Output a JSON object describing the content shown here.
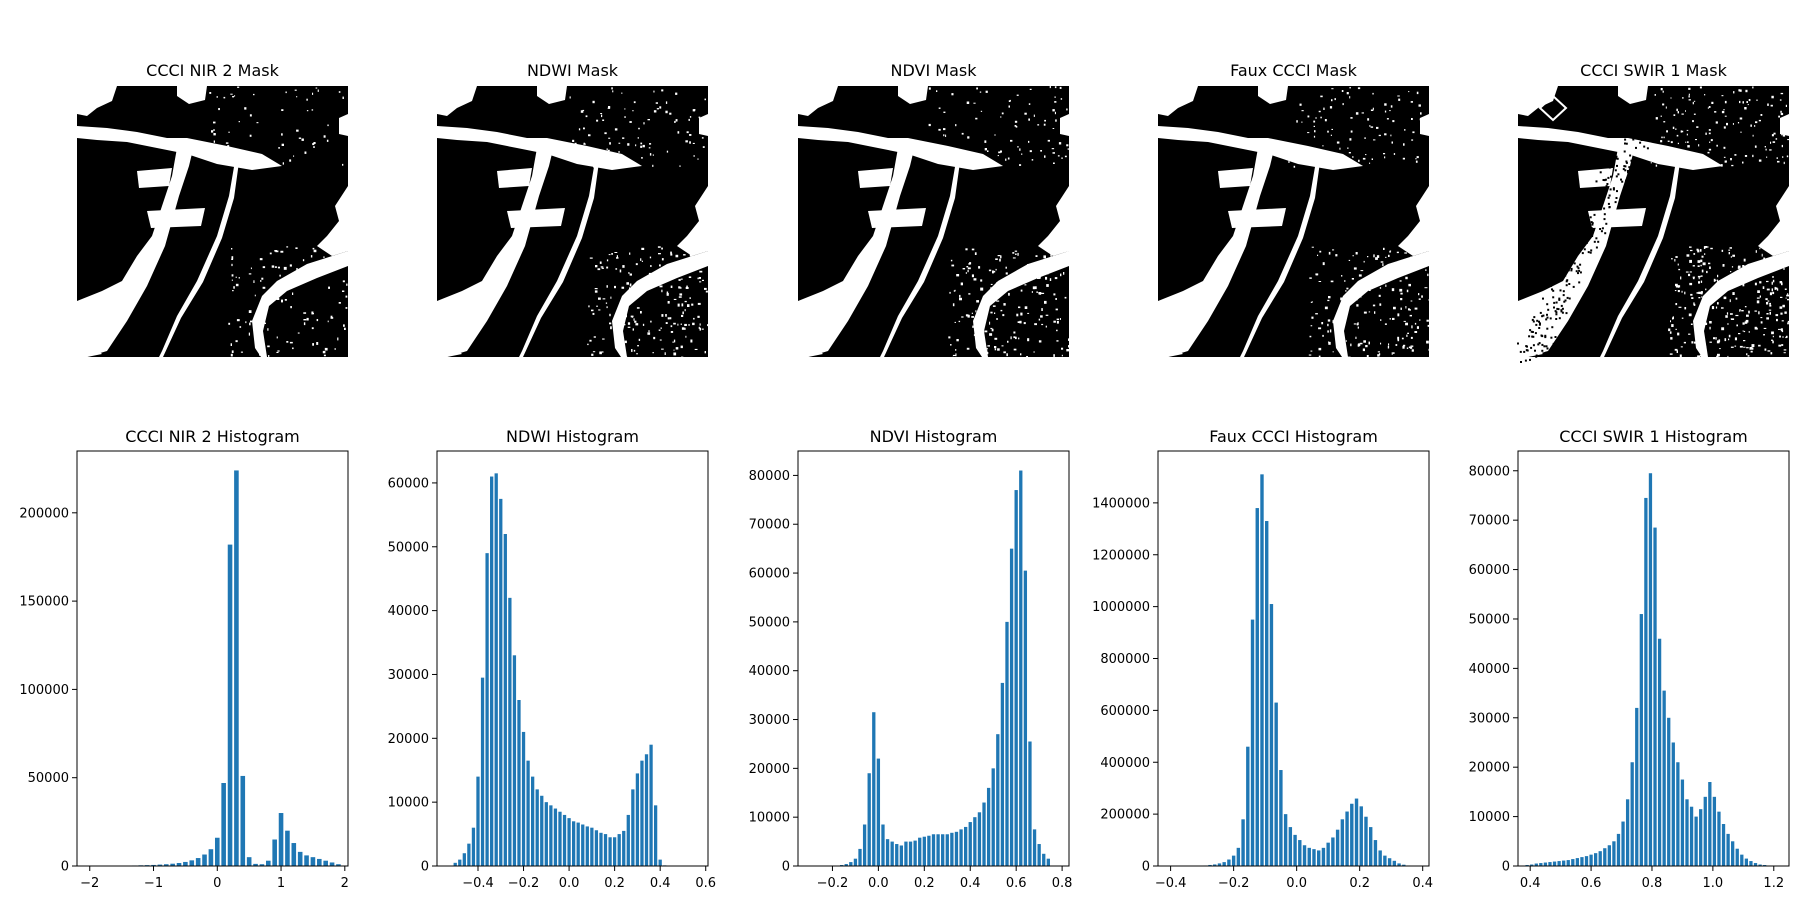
{
  "colors": {
    "bar": "#1f77b4",
    "mask_bg": "#000000",
    "mask_fg": "#ffffff"
  },
  "masks": [
    {
      "title": "CCCI NIR 2 Mask"
    },
    {
      "title": "NDWI Mask"
    },
    {
      "title": "NDVI Mask"
    },
    {
      "title": "Faux CCCI Mask"
    },
    {
      "title": "CCCI SWIR 1 Mask"
    }
  ],
  "chart_data": [
    {
      "type": "bar",
      "title": "CCCI NIR 2 Histogram",
      "xlim": [
        -2.2,
        2.05
      ],
      "ylim": [
        0,
        235000
      ],
      "xticks": [
        -2,
        -1,
        0,
        1,
        2
      ],
      "yticks": [
        0,
        50000,
        100000,
        150000,
        200000
      ],
      "bin_width": 0.1,
      "x": [
        -1.4,
        -1.3,
        -1.2,
        -1.1,
        -1.0,
        -0.9,
        -0.8,
        -0.7,
        -0.6,
        -0.5,
        -0.4,
        -0.3,
        -0.2,
        -0.1,
        0.0,
        0.1,
        0.2,
        0.3,
        0.4,
        0.5,
        0.6,
        0.7,
        0.8,
        0.9,
        1.0,
        1.1,
        1.2,
        1.3,
        1.4,
        1.5,
        1.6,
        1.7,
        1.8,
        1.9
      ],
      "values": [
        200,
        300,
        400,
        500,
        600,
        800,
        1000,
        1300,
        1700,
        2300,
        3200,
        4500,
        6500,
        9500,
        16000,
        47000,
        182000,
        224000,
        51000,
        5000,
        1200,
        1000,
        3000,
        15000,
        30000,
        20000,
        13000,
        8000,
        6000,
        5000,
        4000,
        3000,
        2000,
        1000
      ]
    },
    {
      "type": "bar",
      "title": "NDWI Histogram",
      "xlim": [
        -0.58,
        0.61
      ],
      "ylim": [
        0,
        65000
      ],
      "xticks": [
        -0.4,
        -0.2,
        0.0,
        0.2,
        0.4,
        0.6
      ],
      "yticks": [
        0,
        10000,
        20000,
        30000,
        40000,
        50000,
        60000
      ],
      "bin_width": 0.02,
      "x": [
        -0.5,
        -0.48,
        -0.46,
        -0.44,
        -0.42,
        -0.4,
        -0.38,
        -0.36,
        -0.34,
        -0.32,
        -0.3,
        -0.28,
        -0.26,
        -0.24,
        -0.22,
        -0.2,
        -0.18,
        -0.16,
        -0.14,
        -0.12,
        -0.1,
        -0.08,
        -0.06,
        -0.04,
        -0.02,
        0.0,
        0.02,
        0.04,
        0.06,
        0.08,
        0.1,
        0.12,
        0.14,
        0.16,
        0.18,
        0.2,
        0.22,
        0.24,
        0.26,
        0.28,
        0.3,
        0.32,
        0.34,
        0.36,
        0.38,
        0.4,
        0.42
      ],
      "values": [
        500,
        1000,
        2000,
        3500,
        6000,
        14000,
        29500,
        49000,
        61000,
        61500,
        57500,
        52000,
        42000,
        33000,
        26000,
        21000,
        16500,
        14000,
        12000,
        11000,
        10000,
        9500,
        9000,
        8500,
        8000,
        7500,
        7000,
        6800,
        6500,
        6200,
        6000,
        5600,
        5200,
        5000,
        4500,
        4500,
        5000,
        5500,
        8000,
        12000,
        14500,
        16500,
        17500,
        19000,
        9500,
        1000,
        100
      ]
    },
    {
      "type": "bar",
      "title": "NDVI Histogram",
      "xlim": [
        -0.35,
        0.83
      ],
      "ylim": [
        0,
        85000
      ],
      "xticks": [
        -0.2,
        0.0,
        0.2,
        0.4,
        0.6,
        0.8
      ],
      "yticks": [
        0,
        10000,
        20000,
        30000,
        40000,
        50000,
        60000,
        70000,
        80000
      ],
      "bin_width": 0.02,
      "x": [
        -0.16,
        -0.14,
        -0.12,
        -0.1,
        -0.08,
        -0.06,
        -0.04,
        -0.02,
        0.0,
        0.02,
        0.04,
        0.06,
        0.08,
        0.1,
        0.12,
        0.14,
        0.16,
        0.18,
        0.2,
        0.22,
        0.24,
        0.26,
        0.28,
        0.3,
        0.32,
        0.34,
        0.36,
        0.38,
        0.4,
        0.42,
        0.44,
        0.46,
        0.48,
        0.5,
        0.52,
        0.54,
        0.56,
        0.58,
        0.6,
        0.62,
        0.64,
        0.66,
        0.68,
        0.7,
        0.72,
        0.74
      ],
      "values": [
        200,
        400,
        800,
        1500,
        3500,
        8500,
        19000,
        31500,
        22000,
        8500,
        5500,
        5000,
        4500,
        4200,
        5000,
        5000,
        5200,
        5800,
        6000,
        6200,
        6500,
        6500,
        6500,
        6500,
        6800,
        7000,
        7500,
        8000,
        9000,
        10000,
        11000,
        13000,
        16000,
        20000,
        27000,
        37500,
        50000,
        65000,
        77000,
        81000,
        60500,
        25500,
        7500,
        4500,
        2500,
        1500
      ]
    },
    {
      "type": "bar",
      "title": "Faux CCCI Histogram",
      "xlim": [
        -0.44,
        0.42
      ],
      "ylim": [
        0,
        1600000
      ],
      "xticks": [
        -0.4,
        -0.2,
        0.0,
        0.2,
        0.4
      ],
      "yticks": [
        0,
        200000,
        400000,
        600000,
        800000,
        1000000,
        1200000,
        1400000
      ],
      "bin_width": 0.015,
      "x": [
        -0.29,
        -0.275,
        -0.26,
        -0.245,
        -0.23,
        -0.215,
        -0.2,
        -0.185,
        -0.17,
        -0.155,
        -0.14,
        -0.125,
        -0.11,
        -0.095,
        -0.08,
        -0.065,
        -0.05,
        -0.035,
        -0.02,
        -0.005,
        0.01,
        0.025,
        0.04,
        0.055,
        0.07,
        0.085,
        0.1,
        0.115,
        0.13,
        0.145,
        0.16,
        0.175,
        0.19,
        0.205,
        0.22,
        0.235,
        0.25,
        0.265,
        0.28,
        0.295,
        0.31,
        0.325,
        0.34,
        0.355,
        0.37,
        0.385
      ],
      "values": [
        2000,
        4000,
        6000,
        10000,
        15000,
        25000,
        40000,
        70000,
        180000,
        460000,
        950000,
        1380000,
        1510000,
        1330000,
        1010000,
        630000,
        370000,
        200000,
        150000,
        120000,
        100000,
        80000,
        70000,
        65000,
        60000,
        70000,
        90000,
        110000,
        140000,
        180000,
        210000,
        240000,
        260000,
        230000,
        190000,
        150000,
        100000,
        60000,
        40000,
        30000,
        20000,
        10000,
        5000,
        2000,
        1000,
        500
      ]
    },
    {
      "type": "bar",
      "title": "CCCI SWIR 1 Histogram",
      "xlim": [
        0.36,
        1.25
      ],
      "ylim": [
        0,
        84000
      ],
      "xticks": [
        0.4,
        0.6,
        0.8,
        1.0,
        1.2
      ],
      "yticks": [
        0,
        10000,
        20000,
        30000,
        40000,
        50000,
        60000,
        70000,
        80000
      ],
      "bin_width": 0.015,
      "x": [
        0.39,
        0.405,
        0.42,
        0.435,
        0.45,
        0.465,
        0.48,
        0.495,
        0.51,
        0.525,
        0.54,
        0.555,
        0.57,
        0.585,
        0.6,
        0.615,
        0.63,
        0.645,
        0.66,
        0.675,
        0.69,
        0.705,
        0.72,
        0.735,
        0.75,
        0.765,
        0.78,
        0.795,
        0.81,
        0.825,
        0.84,
        0.855,
        0.87,
        0.885,
        0.9,
        0.915,
        0.93,
        0.945,
        0.96,
        0.975,
        0.99,
        1.005,
        1.02,
        1.035,
        1.05,
        1.065,
        1.08,
        1.095,
        1.11,
        1.125,
        1.14,
        1.155,
        1.17,
        1.185,
        1.2
      ],
      "values": [
        200,
        300,
        500,
        600,
        700,
        800,
        900,
        1000,
        1100,
        1200,
        1400,
        1600,
        1800,
        2000,
        2300,
        2600,
        3000,
        3600,
        4200,
        5000,
        6500,
        9000,
        13500,
        21000,
        32000,
        51000,
        74500,
        79500,
        68500,
        46000,
        35500,
        30000,
        25000,
        21000,
        17500,
        13500,
        12000,
        10000,
        11500,
        14000,
        17000,
        14000,
        11000,
        8500,
        6500,
        5000,
        3500,
        2300,
        1500,
        1000,
        600,
        300,
        200,
        100,
        50
      ]
    }
  ]
}
